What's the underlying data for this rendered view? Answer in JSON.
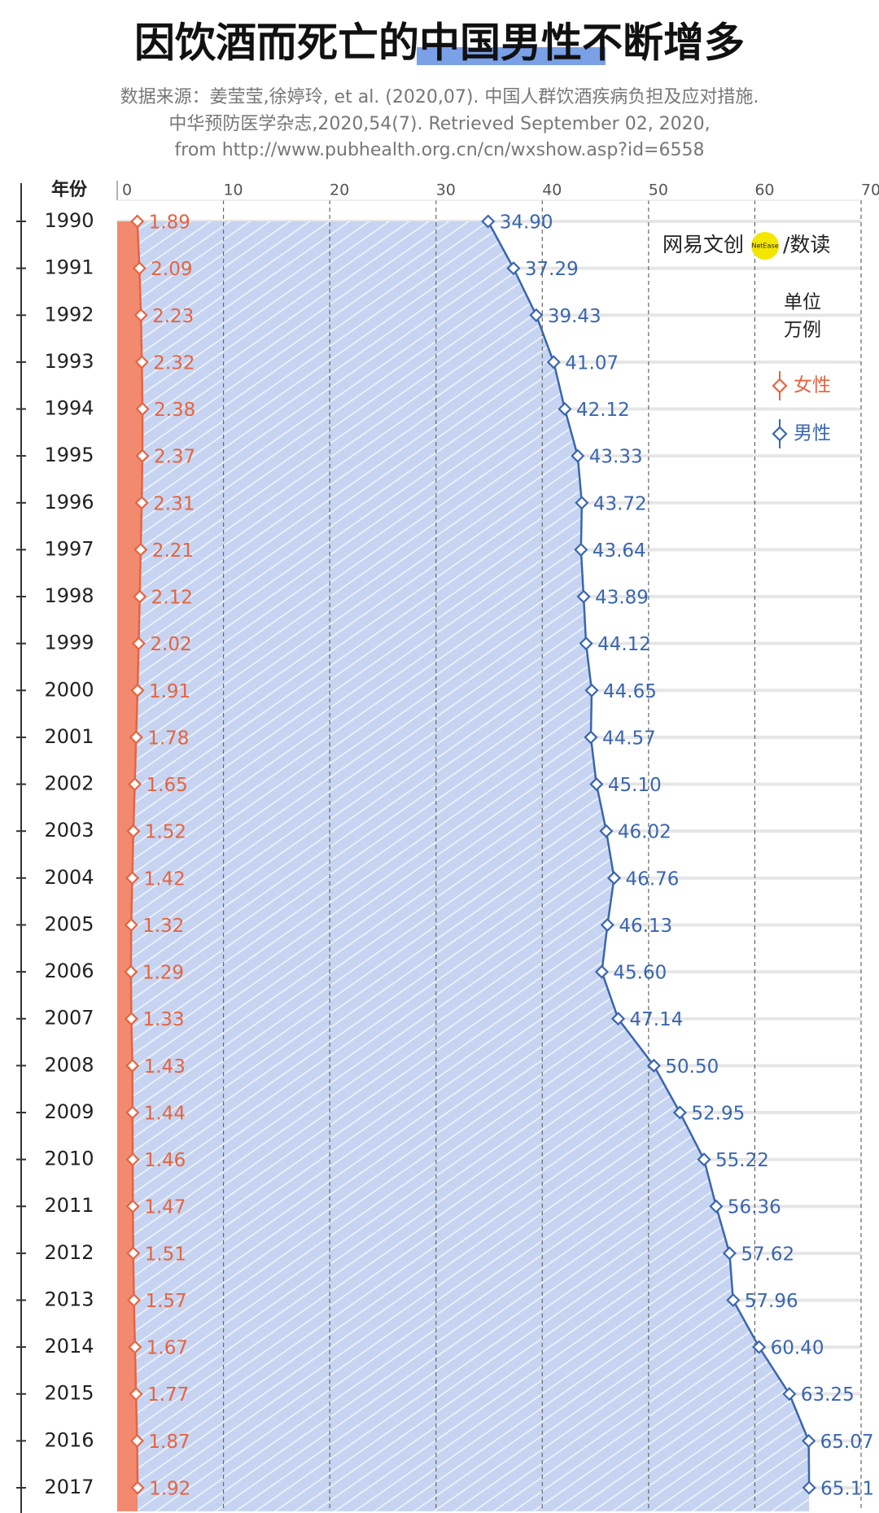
{
  "chart_data": {
    "type": "area",
    "orientation": "horizontal",
    "title": "因饮酒而死亡的中国男性不断增多",
    "source": [
      "数据来源：姜莹莹,徐婷玲, et al. (2020,07). 中国人群饮酒疾病负担及应对措施.",
      "中华预防医学杂志,2020,54(7). Retrieved September 02, 2020,",
      "from http://www.pubhealth.org.cn/cn/wxshow.asp?id=6558"
    ],
    "logo": "网易文创",
    "logo_badge": "NetEase",
    "logo_suffix": "/数读",
    "category_axis_label": "年份",
    "unit_label": [
      "单位",
      "万例"
    ],
    "categories": [
      "1990",
      "1991",
      "1992",
      "1993",
      "1994",
      "1995",
      "1996",
      "1997",
      "1998",
      "1999",
      "2000",
      "2001",
      "2002",
      "2003",
      "2004",
      "2005",
      "2006",
      "2007",
      "2008",
      "2009",
      "2010",
      "2011",
      "2012",
      "2013",
      "2014",
      "2015",
      "2016",
      "2017"
    ],
    "series": [
      {
        "name": "男性",
        "color": "#3a66b0",
        "fill": "#c6d4f1",
        "values": [
          34.9,
          37.29,
          39.43,
          41.07,
          42.12,
          43.33,
          43.72,
          43.64,
          43.89,
          44.12,
          44.65,
          44.57,
          45.1,
          46.02,
          46.76,
          46.13,
          45.6,
          47.14,
          50.5,
          52.95,
          55.22,
          56.36,
          57.62,
          57.96,
          60.4,
          63.25,
          65.07,
          65.11
        ],
        "value_labels": [
          "34.90",
          "37.29",
          "39.43",
          "41.07",
          "42.12",
          "43.33",
          "43.72",
          "43.64",
          "43.89",
          "44.12",
          "44.65",
          "44.57",
          "45.10",
          "46.02",
          "46.76",
          "46.13",
          "45.60",
          "47.14",
          "50.50",
          "52.95",
          "55.22",
          "56.36",
          "57.62",
          "57.96",
          "60.40",
          "63.25",
          "65.07",
          "65.11"
        ]
      },
      {
        "name": "女性",
        "color": "#e5643f",
        "fill": "#f28a6f",
        "values": [
          1.89,
          2.09,
          2.23,
          2.32,
          2.38,
          2.37,
          2.31,
          2.21,
          2.12,
          2.02,
          1.91,
          1.78,
          1.65,
          1.52,
          1.42,
          1.32,
          1.29,
          1.33,
          1.43,
          1.44,
          1.46,
          1.47,
          1.51,
          1.57,
          1.67,
          1.77,
          1.87,
          1.92
        ],
        "value_labels": [
          "1.89",
          "2.09",
          "2.23",
          "2.32",
          "2.38",
          "2.37",
          "2.31",
          "2.21",
          "2.12",
          "2.02",
          "1.91",
          "1.78",
          "1.65",
          "1.52",
          "1.42",
          "1.32",
          "1.29",
          "1.33",
          "1.43",
          "1.44",
          "1.46",
          "1.47",
          "1.51",
          "1.57",
          "1.67",
          "1.77",
          "1.87",
          "1.92"
        ]
      }
    ],
    "xlim": [
      0,
      70
    ],
    "xticks": [
      0,
      10,
      20,
      30,
      40,
      50,
      60,
      70
    ],
    "grid": true
  }
}
